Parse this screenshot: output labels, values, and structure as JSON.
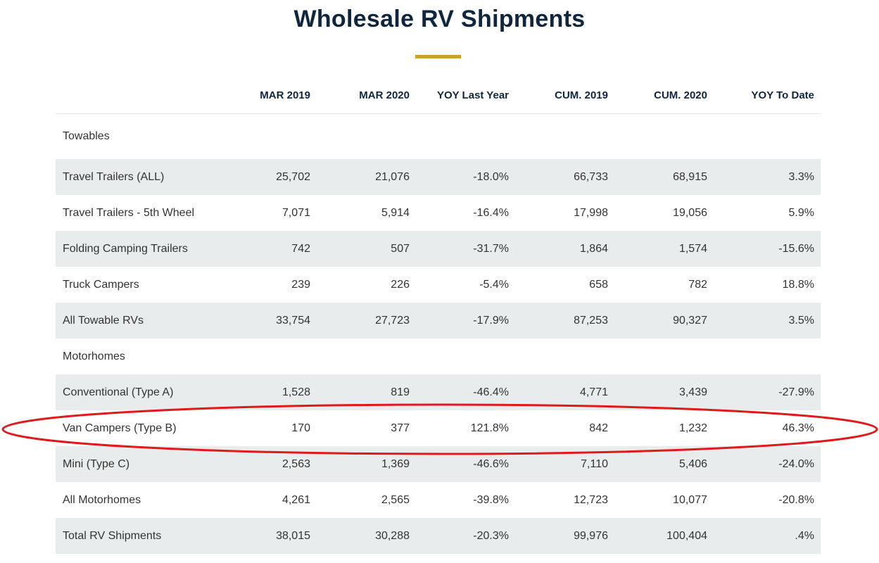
{
  "header": {
    "title": "Wholesale RV Shipments"
  },
  "table": {
    "columns": [
      "MAR 2019",
      "MAR 2020",
      "YOY Last Year",
      "CUM. 2019",
      "CUM. 2020",
      "YOY To Date"
    ],
    "rows": [
      {
        "label": "Towables"
      },
      {
        "label": "Travel Trailers (ALL)",
        "cells": [
          "25,702",
          "21,076",
          "-18.0%",
          "66,733",
          "68,915",
          "3.3%"
        ]
      },
      {
        "label": "Travel Trailers - 5th Wheel",
        "cells": [
          "7,071",
          "5,914",
          "-16.4%",
          "17,998",
          "19,056",
          "5.9%"
        ]
      },
      {
        "label": "Folding Camping Trailers",
        "cells": [
          "742",
          "507",
          "-31.7%",
          "1,864",
          "1,574",
          "-15.6%"
        ]
      },
      {
        "label": "Truck Campers",
        "cells": [
          "239",
          "226",
          "-5.4%",
          "658",
          "782",
          "18.8%"
        ]
      },
      {
        "label": "All Towable RVs",
        "cells": [
          "33,754",
          "27,723",
          "-17.9%",
          "87,253",
          "90,327",
          "3.5%"
        ]
      },
      {
        "label": "Motorhomes"
      },
      {
        "label": "Conventional (Type A)",
        "cells": [
          "1,528",
          "819",
          "-46.4%",
          "4,771",
          "3,439",
          "-27.9%"
        ]
      },
      {
        "label": "Van Campers (Type B)",
        "cells": [
          "170",
          "377",
          "121.8%",
          "842",
          "1,232",
          "46.3%"
        ]
      },
      {
        "label": "Mini (Type C)",
        "cells": [
          "2,563",
          "1,369",
          "-46.6%",
          "7,110",
          "5,406",
          "-24.0%"
        ]
      },
      {
        "label": "All Motorhomes",
        "cells": [
          "4,261",
          "2,565",
          "-39.8%",
          "12,723",
          "10,077",
          "-20.8%"
        ]
      },
      {
        "label": "Total RV Shipments",
        "cells": [
          "38,015",
          "30,288",
          "-20.3%",
          "99,976",
          "100,404",
          ".4%"
        ]
      }
    ]
  }
}
